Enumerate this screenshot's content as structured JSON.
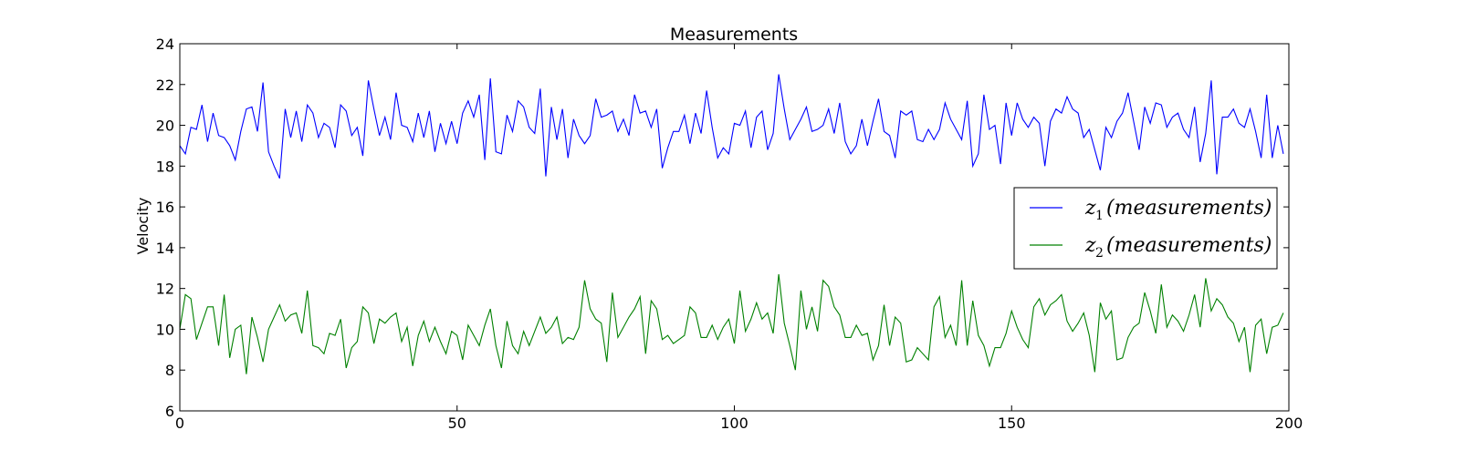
{
  "chart_data": {
    "type": "line",
    "title": "Measurements",
    "xlabel": "",
    "ylabel": "Velocity",
    "xlim": [
      0,
      200
    ],
    "ylim": [
      6,
      24
    ],
    "xticks": [
      0,
      50,
      100,
      150,
      200
    ],
    "yticks": [
      6,
      8,
      10,
      12,
      14,
      16,
      18,
      20,
      22,
      24
    ],
    "grid": false,
    "legend_position": "right",
    "series": [
      {
        "name_sub": "1",
        "name_text": "(measurements)",
        "color": "#0000ff",
        "values": [
          19.0,
          18.6,
          19.9,
          19.8,
          21.0,
          19.2,
          20.6,
          19.5,
          19.4,
          19.0,
          18.3,
          19.7,
          20.8,
          20.9,
          19.7,
          22.1,
          18.7,
          18.0,
          17.4,
          20.8,
          19.4,
          20.7,
          19.2,
          21.0,
          20.6,
          19.4,
          20.1,
          19.9,
          18.9,
          21.0,
          20.7,
          19.5,
          19.9,
          18.5,
          22.2,
          20.8,
          19.5,
          20.4,
          19.3,
          21.6,
          20.0,
          19.9,
          19.2,
          20.6,
          19.4,
          20.7,
          18.7,
          20.1,
          19.1,
          20.2,
          19.1,
          20.6,
          21.2,
          20.4,
          21.5,
          18.3,
          22.3,
          18.7,
          18.6,
          20.5,
          19.7,
          21.2,
          20.9,
          19.9,
          19.6,
          21.8,
          17.5,
          20.9,
          19.3,
          20.8,
          18.4,
          20.3,
          19.5,
          19.1,
          19.5,
          21.3,
          20.4,
          20.5,
          20.7,
          19.7,
          20.3,
          19.5,
          21.5,
          20.6,
          20.7,
          19.9,
          20.8,
          17.9,
          18.9,
          19.7,
          19.7,
          20.5,
          19.1,
          20.6,
          19.6,
          21.7,
          19.9,
          18.4,
          18.9,
          18.6,
          20.1,
          20.0,
          20.7,
          18.9,
          20.4,
          20.7,
          18.8,
          19.6,
          22.5,
          20.8,
          19.3,
          19.8,
          20.3,
          20.9,
          19.7,
          19.8,
          20.0,
          20.8,
          19.6,
          21.1,
          19.2,
          18.6,
          19.0,
          20.3,
          19.0,
          20.2,
          21.3,
          19.7,
          19.5,
          18.4,
          20.7,
          20.5,
          20.7,
          19.3,
          19.2,
          19.8,
          19.3,
          19.8,
          21.1,
          20.3,
          19.8,
          19.3,
          21.2,
          18.0,
          18.6,
          21.5,
          19.8,
          20.0,
          18.1,
          21.1,
          19.5,
          21.1,
          20.3,
          19.9,
          20.4,
          20.1,
          18.0,
          20.2,
          20.8,
          20.6,
          21.4,
          20.8,
          20.6,
          19.4,
          19.8,
          18.8,
          17.8,
          19.9,
          19.4,
          20.2,
          20.6,
          21.6,
          20.2,
          18.8,
          20.9,
          20.1,
          21.1,
          21.0,
          19.9,
          20.4,
          20.6,
          19.8,
          19.4,
          20.9,
          18.2,
          19.6,
          22.2,
          17.6,
          20.4,
          20.4,
          20.8,
          20.1,
          19.9,
          20.8,
          19.7,
          18.4,
          21.5,
          18.4,
          20.0,
          18.6
        ]
      },
      {
        "name_sub": "2",
        "name_text": "(measurements)",
        "color": "#008000",
        "values": [
          10.0,
          11.7,
          11.5,
          9.5,
          10.3,
          11.1,
          11.1,
          9.2,
          11.7,
          8.6,
          10.0,
          10.2,
          7.8,
          10.6,
          9.6,
          8.4,
          10.0,
          10.6,
          11.2,
          10.4,
          10.7,
          10.8,
          9.8,
          11.9,
          9.2,
          9.1,
          8.8,
          9.8,
          9.7,
          10.5,
          8.1,
          9.1,
          9.4,
          11.1,
          10.8,
          9.3,
          10.5,
          10.3,
          10.6,
          10.8,
          9.4,
          10.1,
          8.2,
          9.7,
          10.4,
          9.4,
          10.1,
          9.4,
          8.8,
          9.9,
          9.7,
          8.5,
          10.2,
          9.7,
          9.2,
          10.2,
          11.0,
          9.2,
          8.1,
          10.4,
          9.2,
          8.8,
          9.9,
          9.2,
          9.9,
          10.6,
          9.8,
          10.1,
          10.6,
          9.3,
          9.6,
          9.5,
          10.1,
          12.4,
          11.0,
          10.5,
          10.3,
          8.4,
          11.8,
          9.6,
          10.1,
          10.6,
          11.0,
          11.6,
          8.8,
          11.4,
          11.0,
          9.5,
          9.7,
          9.3,
          9.5,
          9.7,
          11.1,
          10.8,
          9.6,
          9.6,
          10.2,
          9.5,
          10.1,
          10.5,
          9.3,
          11.9,
          9.9,
          10.5,
          11.3,
          10.5,
          10.8,
          9.8,
          12.7,
          10.3,
          9.2,
          8.0,
          11.9,
          10.0,
          11.1,
          9.9,
          12.4,
          12.1,
          11.1,
          10.7,
          9.6,
          9.6,
          10.2,
          9.7,
          9.8,
          8.5,
          9.2,
          11.2,
          9.2,
          10.6,
          10.3,
          8.4,
          8.5,
          9.1,
          8.8,
          8.5,
          11.1,
          11.6,
          9.6,
          10.2,
          9.2,
          12.4,
          9.2,
          11.4,
          9.7,
          9.2,
          8.2,
          9.1,
          9.1,
          9.8,
          10.9,
          10.1,
          9.5,
          9.1,
          11.1,
          11.5,
          10.7,
          11.2,
          11.4,
          11.7,
          10.4,
          9.9,
          10.3,
          10.8,
          9.7,
          7.9,
          11.3,
          10.5,
          10.9,
          8.5,
          8.6,
          9.6,
          10.1,
          10.3,
          11.8,
          10.9,
          9.8,
          12.2,
          10.1,
          10.7,
          10.4,
          9.9,
          10.7,
          11.7,
          10.1,
          12.5,
          10.9,
          11.5,
          11.2,
          10.6,
          10.3,
          9.4,
          10.1,
          7.9,
          10.2,
          10.5,
          8.8,
          10.1,
          10.2,
          10.8
        ]
      }
    ]
  }
}
